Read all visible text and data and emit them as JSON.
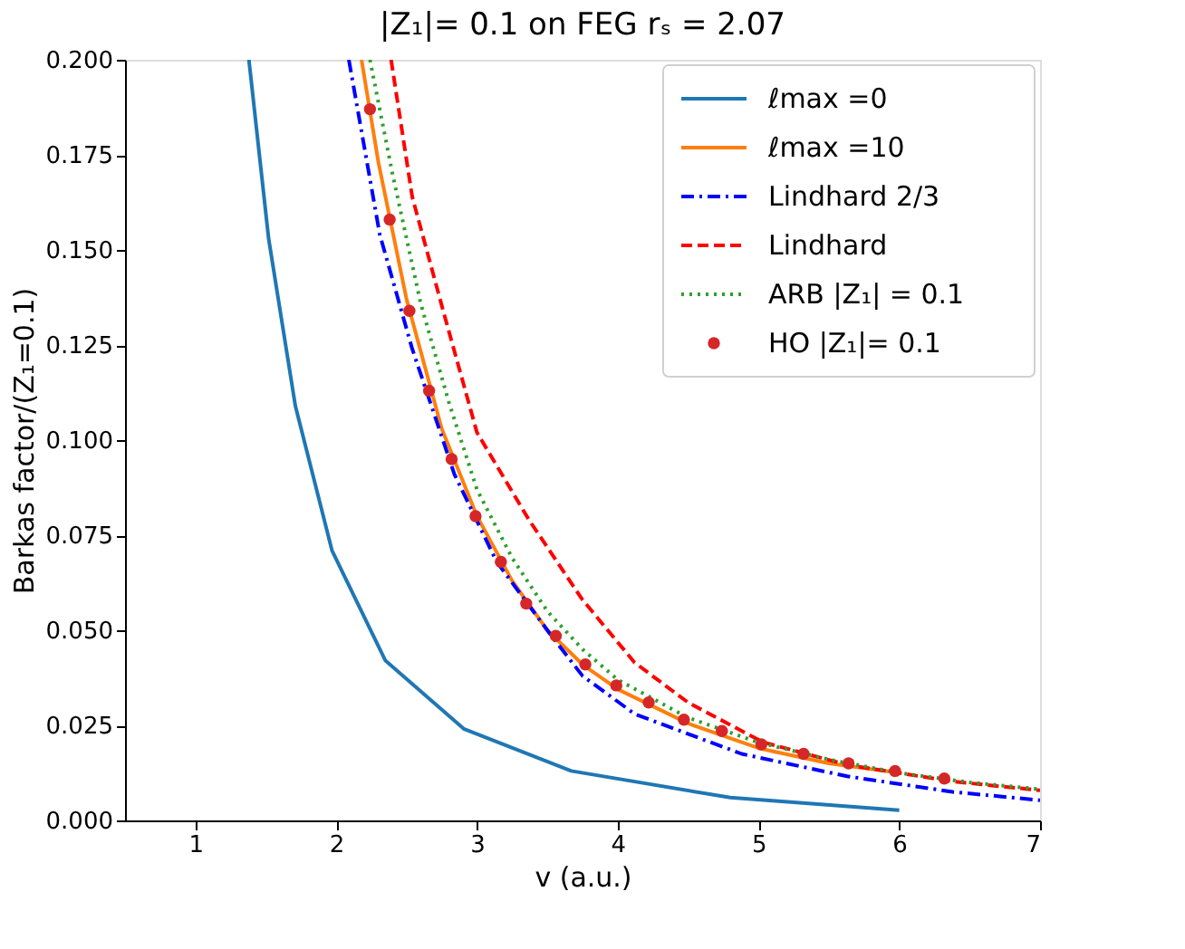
{
  "chart_data": {
    "type": "line",
    "title": "|Z₁|= 0.1 on FEG rₛ = 2.07",
    "xlabel": "v (a.u.)",
    "ylabel": "Barkas factor/(Z₁=0.1)",
    "xlim": [
      0.5,
      7
    ],
    "xticks": [
      1,
      2,
      3,
      4,
      5,
      6,
      7
    ],
    "ylim": [
      0,
      0.2
    ],
    "yticks": [
      {
        "value": 0,
        "label": "0.000"
      },
      {
        "value": 0.025,
        "label": "0.025"
      },
      {
        "value": 0.05,
        "label": "0.050"
      },
      {
        "value": 0.075,
        "label": "0.075"
      },
      {
        "value": 0.1,
        "label": "0.100"
      },
      {
        "value": 0.125,
        "label": "0.125"
      },
      {
        "value": 0.15,
        "label": "0.150"
      },
      {
        "value": 0.175,
        "label": "0.175"
      },
      {
        "value": 0.2,
        "label": "0.200"
      }
    ],
    "grid": false,
    "legend": "top right",
    "series": [
      {
        "name": "ℓmax =0",
        "line_style": "solid",
        "color": "#1f77b4",
        "x": [
          1.38,
          1.52,
          1.71,
          1.97,
          2.35,
          2.91,
          3.67,
          4.8,
          6.0
        ],
        "values": [
          0.2,
          0.153,
          0.109,
          0.071,
          0.042,
          0.024,
          0.013,
          0.006,
          0.0027
        ]
      },
      {
        "name": "ℓmax =10",
        "line_style": "solid",
        "color": "#ff7f0e",
        "x": [
          2.18,
          2.3,
          2.5,
          2.75,
          3.0,
          3.25,
          3.5,
          3.75,
          4.0,
          4.5,
          5.0,
          5.5,
          6.0
        ],
        "values": [
          0.2,
          0.173,
          0.137,
          0.103,
          0.08,
          0.063,
          0.05,
          0.041,
          0.0345,
          0.0255,
          0.019,
          0.015,
          0.0125
        ]
      },
      {
        "name": "Lindhard 2/3",
        "line_style": "dashdot",
        "color": "#0000ff",
        "x": [
          2.09,
          2.31,
          2.54,
          2.84,
          3.14,
          3.52,
          3.75,
          4.12,
          4.88,
          5.63,
          6.38,
          7.0
        ],
        "values": [
          0.2,
          0.154,
          0.124,
          0.091,
          0.068,
          0.049,
          0.038,
          0.028,
          0.0175,
          0.0116,
          0.0075,
          0.0053
        ]
      },
      {
        "name": "Lindhard",
        "line_style": "dashed",
        "color": "#ff0000",
        "x": [
          2.39,
          2.54,
          2.76,
          3.0,
          3.37,
          3.75,
          4.12,
          4.5,
          5.03,
          5.63,
          6.39,
          7.0
        ],
        "values": [
          0.2,
          0.164,
          0.134,
          0.102,
          0.079,
          0.058,
          0.0415,
          0.031,
          0.0206,
          0.0146,
          0.0102,
          0.0079
        ]
      },
      {
        "name": "ARB |Z₁| = 0.1",
        "line_style": "dotted",
        "color": "#2ca02c",
        "x": [
          2.24,
          2.4,
          2.6,
          2.8,
          3.0,
          3.25,
          3.5,
          3.75,
          4.0,
          4.5,
          5.0,
          5.5,
          6.0,
          6.5,
          7.0
        ],
        "values": [
          0.2,
          0.17,
          0.136,
          0.11,
          0.087,
          0.069,
          0.055,
          0.045,
          0.037,
          0.027,
          0.0205,
          0.016,
          0.0125,
          0.01,
          0.0082
        ]
      },
      {
        "name": "HO |Z₁|= 0.1",
        "type": "scatter",
        "marker": "circle",
        "color": "#d62728",
        "x": [
          2.24,
          2.38,
          2.52,
          2.66,
          2.82,
          2.99,
          3.17,
          3.35,
          3.56,
          3.77,
          3.99,
          4.22,
          4.47,
          4.74,
          5.02,
          5.32,
          5.64,
          5.97,
          6.32
        ],
        "values": [
          0.187,
          0.158,
          0.134,
          0.113,
          0.095,
          0.08,
          0.068,
          0.057,
          0.0485,
          0.041,
          0.0355,
          0.031,
          0.0265,
          0.0235,
          0.02,
          0.0175,
          0.015,
          0.013,
          0.011
        ]
      }
    ]
  }
}
